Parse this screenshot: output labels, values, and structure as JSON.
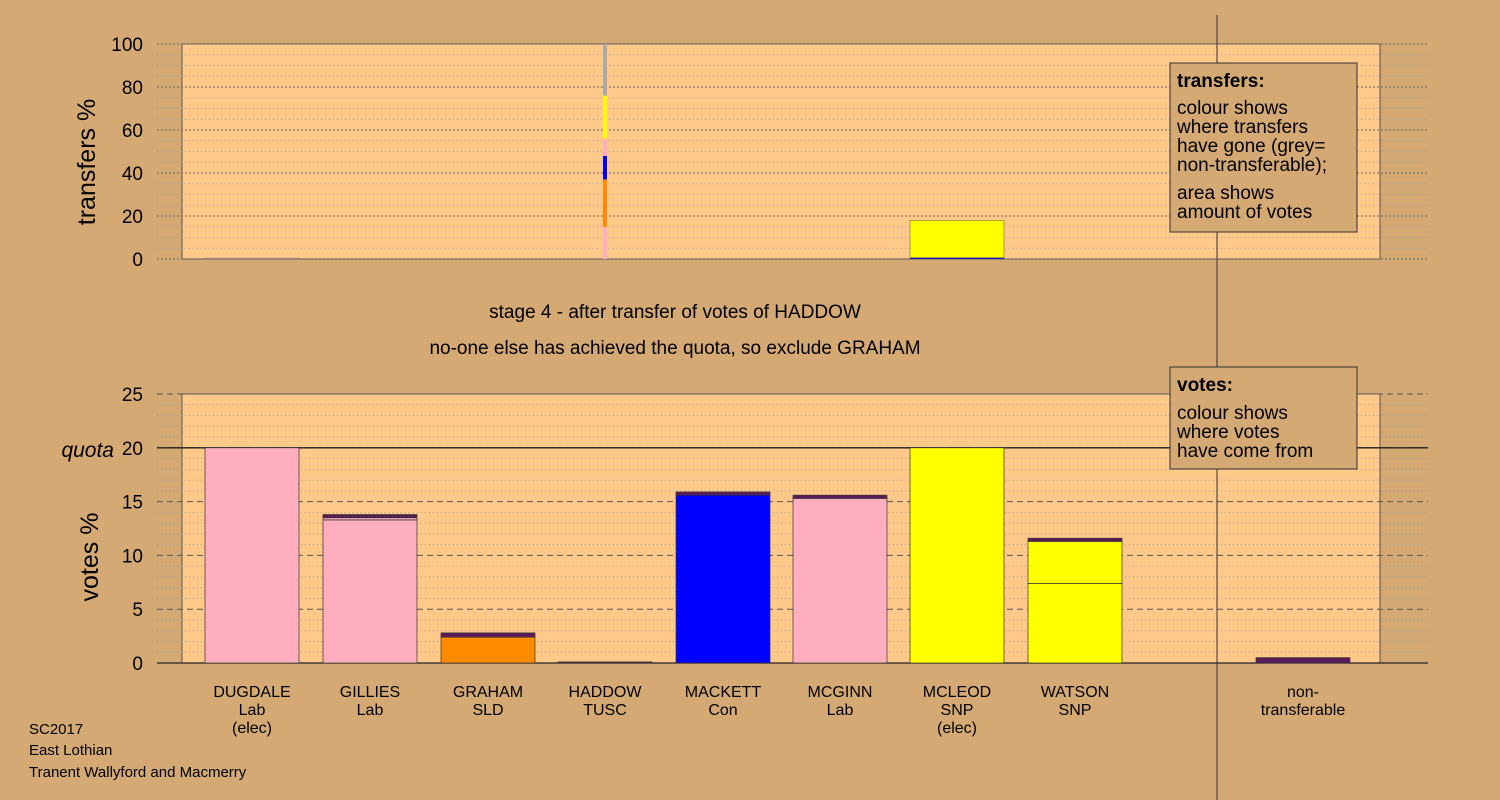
{
  "chart_data": [
    {
      "type": "bar",
      "stacked": true,
      "ylabel": "transfers %",
      "ylim": [
        0,
        100
      ],
      "yticks": [
        0,
        20,
        40,
        60,
        80,
        100
      ],
      "categories": [
        "DUGDALE",
        "GILLIES",
        "GRAHAM",
        "HADDOW",
        "MACKETT",
        "MCGINN",
        "MCLEOD",
        "WATSON",
        "non-transferable"
      ],
      "bars": [
        {
          "category": "DUGDALE",
          "segments": [
            {
              "color": "#ffaec0",
              "value": 0.4
            }
          ]
        },
        {
          "category": "HADDOW",
          "thin": true,
          "segments": [
            {
              "color": "#ffaec0",
              "value": 15
            },
            {
              "color": "#ff8c00",
              "value": 22
            },
            {
              "color": "#0000ff",
              "value": 11
            },
            {
              "color": "#ffaec0",
              "value": 8
            },
            {
              "color": "#ffff00",
              "value": 20
            },
            {
              "color": "#aaaaaa",
              "value": 24
            }
          ]
        },
        {
          "category": "MCLEOD",
          "segments": [
            {
              "color": "#0000ff",
              "value": 0.6
            },
            {
              "color": "#ffff00",
              "value": 17.4
            }
          ]
        }
      ],
      "legend": {
        "title": "transfers:",
        "lines": [
          "colour shows",
          "where transfers",
          "have gone (grey=",
          "non-transferable);",
          "area shows",
          "amount of votes"
        ]
      }
    },
    {
      "type": "bar",
      "stacked": true,
      "ylabel": "votes %",
      "ylim": [
        0,
        25
      ],
      "yticks": [
        0,
        5,
        10,
        15,
        20,
        25
      ],
      "quota": 20,
      "quota_label": "quota",
      "candidates": [
        {
          "name": "DUGDALE",
          "party": "Lab",
          "note": "(elec)",
          "segments": [
            {
              "color": "#ffaec0",
              "value": 20
            }
          ]
        },
        {
          "name": "GILLIES",
          "party": "Lab",
          "note": "",
          "segments": [
            {
              "color": "#ffaec0",
              "value": 13.3
            },
            {
              "color": "#ffaec0",
              "value": 0.2
            },
            {
              "color": "#5b1a5a",
              "value": 0.3
            }
          ]
        },
        {
          "name": "GRAHAM",
          "party": "SLD",
          "note": "",
          "segments": [
            {
              "color": "#ff8c00",
              "value": 2.4
            },
            {
              "color": "#5b1a5a",
              "value": 0.4
            }
          ]
        },
        {
          "name": "HADDOW",
          "party": "TUSC",
          "note": "",
          "segments": [
            {
              "color": "#5b1a5a",
              "value": 0.1
            }
          ]
        },
        {
          "name": "MACKETT",
          "party": "Con",
          "note": "",
          "segments": [
            {
              "color": "#0000ff",
              "value": 15.6
            },
            {
              "color": "#5b1a5a",
              "value": 0.3
            }
          ]
        },
        {
          "name": "MCGINN",
          "party": "Lab",
          "note": "",
          "segments": [
            {
              "color": "#ffaec0",
              "value": 15.3
            },
            {
              "color": "#5b1a5a",
              "value": 0.3
            }
          ]
        },
        {
          "name": "MCLEOD",
          "party": "SNP",
          "note": "(elec)",
          "segments": [
            {
              "color": "#ffff00",
              "value": 20
            }
          ]
        },
        {
          "name": "WATSON",
          "party": "SNP",
          "note": "",
          "segments": [
            {
              "color": "#ffff00",
              "value": 7.4
            },
            {
              "color": "#ffff00",
              "value": 3.9
            },
            {
              "color": "#5b1a5a",
              "value": 0.3
            }
          ]
        },
        {
          "name": "non-",
          "party": "transferable",
          "note": "",
          "segments": [
            {
              "color": "#5b1a5a",
              "value": 0.5
            }
          ]
        }
      ],
      "legend": {
        "title": "votes:",
        "lines": [
          "colour shows",
          "where votes",
          "have come from"
        ]
      }
    }
  ],
  "stage_text": "stage 4 - after transfer of votes of HADDOW",
  "status_text": "no-one else has achieved the quota, so exclude GRAHAM",
  "footer": [
    "SC2017",
    "East Lothian",
    "Tranent Wallyford and Macmerry"
  ],
  "colors": {
    "background": "#d4a973",
    "plot_background": "#ffc98a"
  }
}
